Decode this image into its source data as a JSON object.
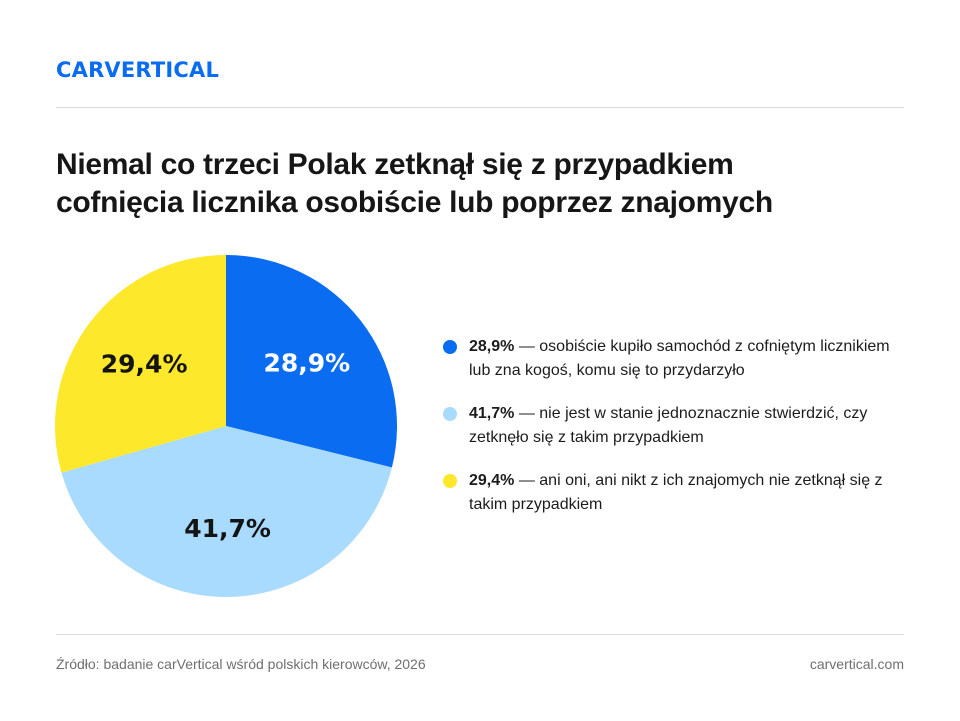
{
  "brand": {
    "logo_text": "carVertical"
  },
  "header": {
    "title_line1": "Niemal co trzeci Polak zetknął się z przypadkiem",
    "title_line2": "cofnięcia licznika osobiście lub poprzez znajomych"
  },
  "chart_data": {
    "type": "pie",
    "title": "Niemal co trzeci Polak zetknął się z przypadkiem cofnięcia licznika osobiście lub poprzez znajomych",
    "start": "top",
    "direction": "clockwise",
    "slices": [
      {
        "value": 28.9,
        "label": "28,9%",
        "color": "#0a6cf0",
        "label_color": "#ffffff",
        "description": "osobiście kupiło samochód z cofniętym licznikiem lub zna kogoś, komu się to przydarzyło"
      },
      {
        "value": 41.7,
        "label": "41,7%",
        "color": "#a8dbfd",
        "label_color": "#141414",
        "description": "nie jest w stanie jednoznacznie stwierdzić, czy zetknęło się z takim przypadkiem"
      },
      {
        "value": 29.4,
        "label": "29,4%",
        "color": "#fde82c",
        "label_color": "#141414",
        "description": "ani oni, ani nikt z ich znajomych nie zetknął się z takim przypadkiem"
      }
    ]
  },
  "legend": {
    "separator": " — "
  },
  "footer": {
    "source": "Źródło: badanie carVertical wśród polskich kierowców, 2026",
    "website": "carvertical.com"
  }
}
